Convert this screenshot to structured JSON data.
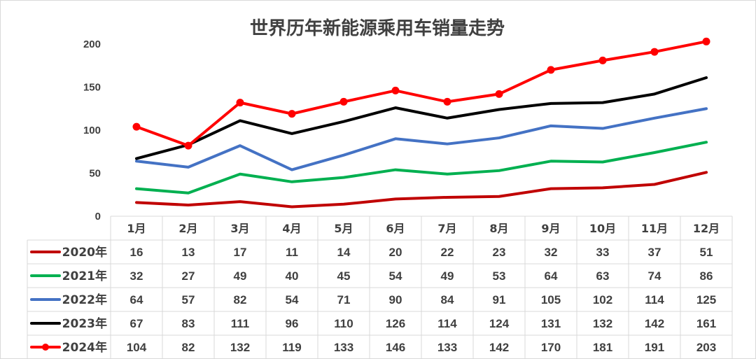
{
  "chart_data": {
    "type": "line",
    "title": "世界历年新能源乘用车销量走势",
    "categories": [
      "1月",
      "2月",
      "3月",
      "4月",
      "5月",
      "6月",
      "7月",
      "8月",
      "9月",
      "10月",
      "11月",
      "12月"
    ],
    "y_ticks": [
      "0",
      "50",
      "100",
      "150",
      "200"
    ],
    "ylim": [
      0,
      200
    ],
    "grid": false,
    "legend": "data-table",
    "series": [
      {
        "name": "2020年",
        "color": "#c00000",
        "markers": false,
        "values": [
          16,
          13,
          17,
          11,
          14,
          20,
          22,
          23,
          32,
          33,
          37,
          51
        ]
      },
      {
        "name": "2021年",
        "color": "#00b050",
        "markers": false,
        "values": [
          32,
          27,
          49,
          40,
          45,
          54,
          49,
          53,
          64,
          63,
          74,
          86
        ]
      },
      {
        "name": "2022年",
        "color": "#4472c4",
        "markers": false,
        "values": [
          64,
          57,
          82,
          54,
          71,
          90,
          84,
          91,
          105,
          102,
          114,
          125
        ]
      },
      {
        "name": "2023年",
        "color": "#000000",
        "markers": false,
        "values": [
          67,
          83,
          111,
          96,
          110,
          126,
          114,
          124,
          131,
          132,
          142,
          161
        ]
      },
      {
        "name": "2024年",
        "color": "#ff0000",
        "markers": true,
        "values": [
          104,
          82,
          132,
          119,
          133,
          146,
          133,
          142,
          170,
          181,
          191,
          203
        ]
      }
    ]
  }
}
